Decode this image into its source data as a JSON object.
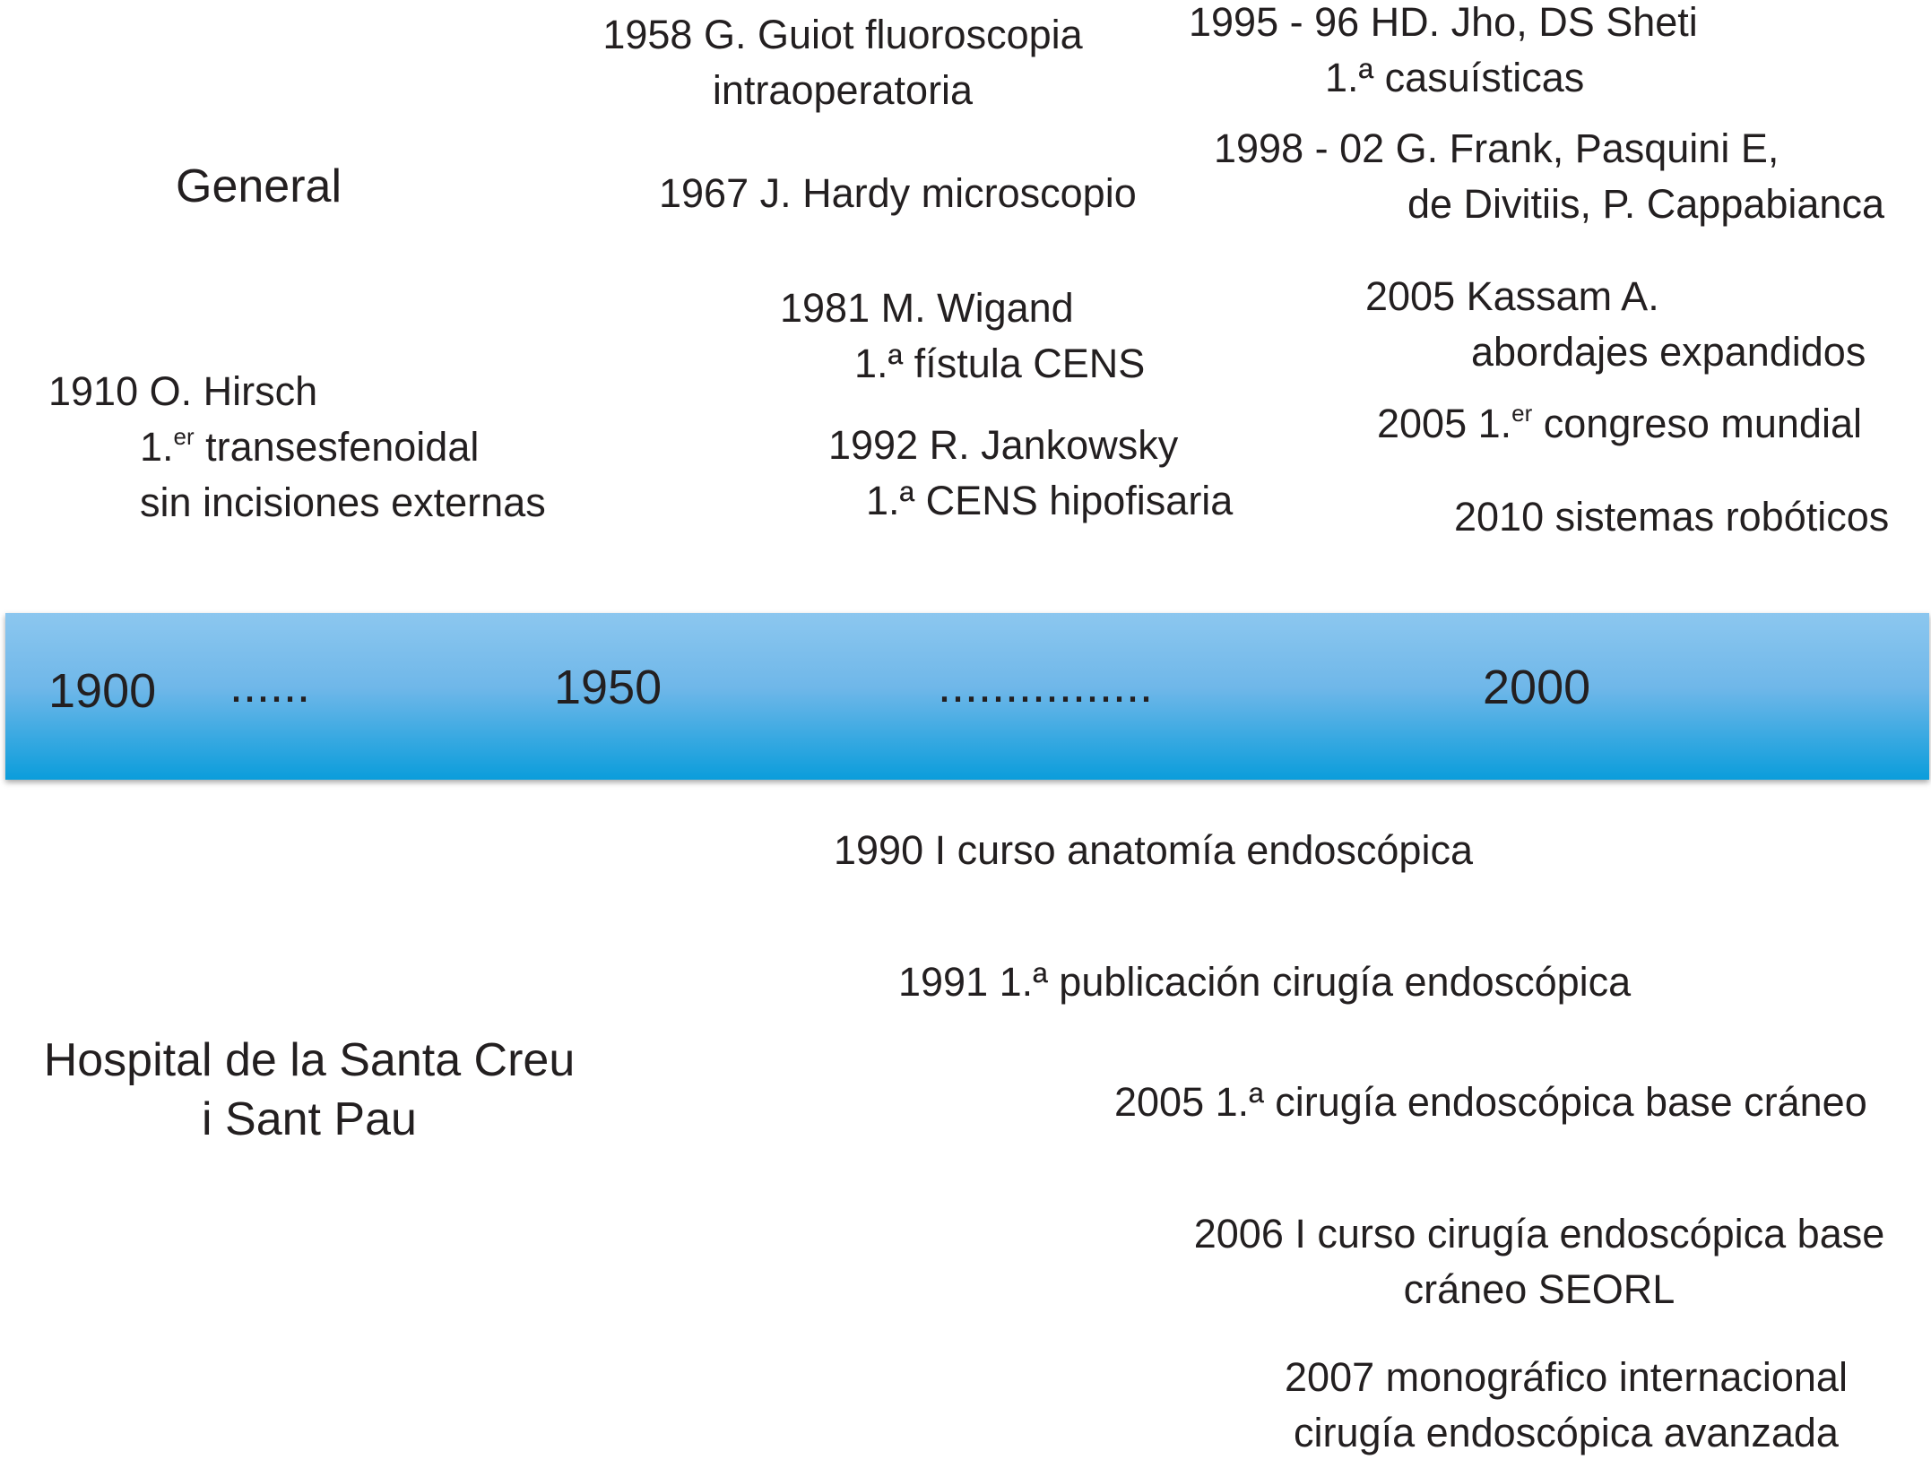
{
  "groups": {
    "general": "General",
    "hospital": [
      "Hospital de la Santa Creu",
      "i Sant Pau"
    ]
  },
  "timeline": {
    "year_1900": "1900",
    "dots_1": "......",
    "year_1950": "1950",
    "dots_2": "................",
    "year_2000": "2000"
  },
  "general_events": {
    "e1958": [
      "1958 G. Guiot fluoroscopia",
      "intraoperatoria"
    ],
    "e1967": "1967 J. Hardy microscopio",
    "e1981": [
      "1981 M. Wigand",
      "1.ª fístula CENS"
    ],
    "e1992": [
      "1992 R. Jankowsky",
      "1.ª CENS hipofisaria"
    ],
    "e1910": {
      "line1": "1910 O. Hirsch",
      "line2_prefix": "1.",
      "line2_sup": "er",
      "line2_rest": " transesfenoidal",
      "line3": "sin incisiones externas"
    },
    "e1995": [
      "1995 - 96 HD. Jho, DS Sheti",
      "1.ª casuísticas"
    ],
    "e1998": [
      "1998 - 02 G. Frank, Pasquini E,",
      "de Divitiis, P. Cappabianca"
    ],
    "e2005a": [
      "2005 Kassam A.",
      "abordajes expandidos"
    ],
    "e2005b": {
      "prefix": "2005 1.",
      "sup": "er",
      "rest": " congreso mundial"
    },
    "e2010": "2010 sistemas robóticos"
  },
  "hospital_events": {
    "e1990": "1990 I curso anatomía endoscópica",
    "e1991": "1991 1.ª publicación cirugía endoscópica",
    "e2005": "2005 1.ª cirugía endoscópica base cráneo",
    "e2006": [
      "2006 I curso cirugía endoscópica base",
      "cráneo  SEORL"
    ],
    "e2007": [
      "2007 monográfico internacional",
      "cirugía endoscópica avanzada"
    ]
  },
  "colors": {
    "text": "#231f20",
    "bar_top": "#8cc7ef",
    "bar_bottom": "#0b9ddb"
  }
}
